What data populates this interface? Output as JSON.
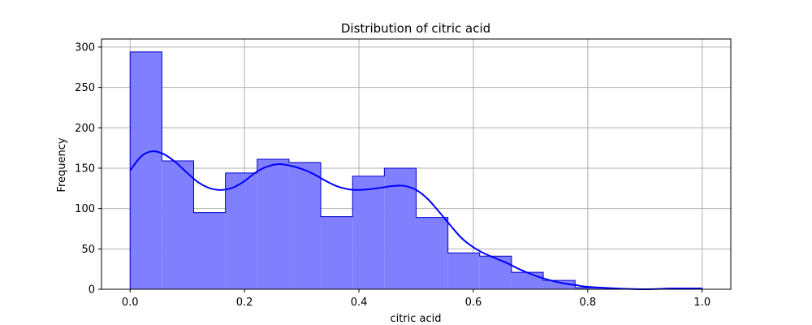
{
  "chart_data": {
    "type": "histogram",
    "title": "Distribution of citric acid",
    "xlabel": "citric acid",
    "ylabel": "Frequency",
    "xlim": [
      -0.05,
      1.05
    ],
    "ylim": [
      0,
      310
    ],
    "xticks": [
      0.0,
      0.2,
      0.4,
      0.6,
      0.8,
      1.0
    ],
    "xtick_labels": [
      "0.0",
      "0.2",
      "0.4",
      "0.6",
      "0.8",
      "1.0"
    ],
    "yticks": [
      0,
      50,
      100,
      150,
      200,
      250,
      300
    ],
    "ytick_labels": [
      "0",
      "50",
      "100",
      "150",
      "200",
      "250",
      "300"
    ],
    "grid": true,
    "bin_edges": [
      0.0,
      0.0556,
      0.1111,
      0.1667,
      0.2222,
      0.2778,
      0.3333,
      0.3889,
      0.4444,
      0.5,
      0.5556,
      0.6111,
      0.6667,
      0.7222,
      0.7778,
      0.8333,
      0.8889,
      0.9444,
      1.0
    ],
    "counts": [
      294,
      159,
      95,
      144,
      161,
      157,
      90,
      140,
      150,
      89,
      45,
      41,
      21,
      11,
      2,
      0,
      0,
      1
    ],
    "kde": {
      "x": [
        0.0,
        0.02,
        0.04,
        0.06,
        0.08,
        0.1,
        0.12,
        0.14,
        0.16,
        0.18,
        0.2,
        0.22,
        0.24,
        0.26,
        0.28,
        0.3,
        0.32,
        0.34,
        0.36,
        0.38,
        0.4,
        0.42,
        0.44,
        0.46,
        0.48,
        0.5,
        0.52,
        0.54,
        0.56,
        0.58,
        0.6,
        0.62,
        0.64,
        0.66,
        0.68,
        0.7,
        0.72,
        0.74,
        0.76,
        0.78,
        0.8,
        0.85,
        0.9,
        0.95,
        1.0
      ],
      "y": [
        147,
        165,
        171,
        167,
        157,
        144,
        132,
        125,
        123,
        126,
        134,
        145,
        152,
        155,
        153,
        149,
        143,
        135,
        128,
        124,
        123,
        124,
        126,
        128,
        128,
        123,
        112,
        96,
        79,
        63,
        52,
        44,
        38,
        32,
        25,
        19,
        14,
        10,
        7,
        5,
        3,
        1,
        0,
        1,
        1
      ]
    },
    "colors": {
      "bar_fill": "#8080ff",
      "bar_edge": "#0000cc",
      "kde_line": "#0000ff",
      "grid": "#b0b0b0"
    }
  }
}
